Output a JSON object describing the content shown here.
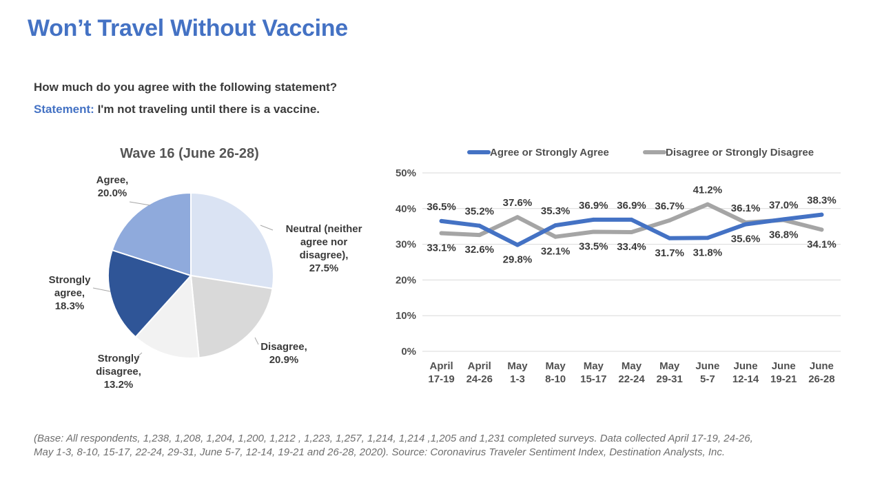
{
  "slide": {
    "title": "Won’t Travel Without Vaccine",
    "question": "How much do you agree with the following statement?",
    "statement_lead": "Statement:",
    "statement_text": " I'm not traveling until there is a vaccine.",
    "footnote_line1": "(Base: All respondents, 1,238, 1,208, 1,204, 1,200, 1,212 , 1,223, 1,257, 1,214, 1,214 ,1,205 and 1,231 completed surveys. Data collected April 17-19, 24-26,",
    "footnote_line2": "May 1-3, 8-10, 15-17, 22-24, 29-31, June 5-7, 12-14, 19-21 and 26-28,  2020). Source: Coronavirus Traveler Sentiment Index, Destination Analysts, Inc."
  },
  "chart_data": [
    {
      "type": "pie",
      "title": "Wave 16 (June 26-28)",
      "slices": [
        {
          "label_lines": [
            "Neutral (neither",
            "agree nor",
            "disagree),",
            "27.5%"
          ],
          "value": 27.5,
          "color": "#dae3f3"
        },
        {
          "label_lines": [
            "Disagree,",
            "20.9%"
          ],
          "value": 20.9,
          "color": "#d9d9d9"
        },
        {
          "label_lines": [
            "Strongly",
            "disagree,",
            "13.2%"
          ],
          "value": 13.2,
          "color": "#f2f2f2"
        },
        {
          "label_lines": [
            "Strongly",
            "agree,",
            "18.3%"
          ],
          "value": 18.3,
          "color": "#2f5597"
        },
        {
          "label_lines": [
            "Agree,",
            "20.0%"
          ],
          "value": 20.0,
          "color": "#8faadc"
        }
      ]
    },
    {
      "type": "line",
      "categories": [
        [
          "April",
          "17-19"
        ],
        [
          "April",
          "24-26"
        ],
        [
          "May",
          "1-3"
        ],
        [
          "May",
          "8-10"
        ],
        [
          "May",
          "15-17"
        ],
        [
          "May",
          "22-24"
        ],
        [
          "May",
          "29-31"
        ],
        [
          "June",
          "5-7"
        ],
        [
          "June",
          "12-14"
        ],
        [
          "June",
          "19-21"
        ],
        [
          "June",
          "26-28"
        ]
      ],
      "ylim": [
        0,
        50
      ],
      "yticks": [
        0,
        10,
        20,
        30,
        40,
        50
      ],
      "ytick_labels": [
        "0%",
        "10%",
        "20%",
        "30%",
        "40%",
        "50%"
      ],
      "grid": true,
      "legend_position": "top",
      "series": [
        {
          "name": "Agree or Strongly Agree",
          "color": "#4472c4",
          "values": [
            36.5,
            35.2,
            29.8,
            35.3,
            36.9,
            36.9,
            31.7,
            31.8,
            35.6,
            37.0,
            38.3
          ],
          "labels": [
            "36.5%",
            "35.2%",
            "29.8%",
            "35.3%",
            "36.9%",
            "36.9%",
            "31.7%",
            "31.8%",
            "35.6%",
            "37.0%",
            "38.3%"
          ]
        },
        {
          "name": "Disagree or Strongly Disagree",
          "color": "#a5a5a5",
          "values": [
            33.1,
            32.6,
            37.6,
            32.1,
            33.5,
            33.4,
            36.7,
            41.2,
            36.1,
            36.8,
            34.1
          ],
          "labels": [
            "33.1%",
            "32.6%",
            "37.6%",
            "32.1%",
            "33.5%",
            "33.4%",
            "36.7%",
            "41.2%",
            "36.1%",
            "36.8%",
            "34.1%"
          ]
        }
      ]
    }
  ]
}
